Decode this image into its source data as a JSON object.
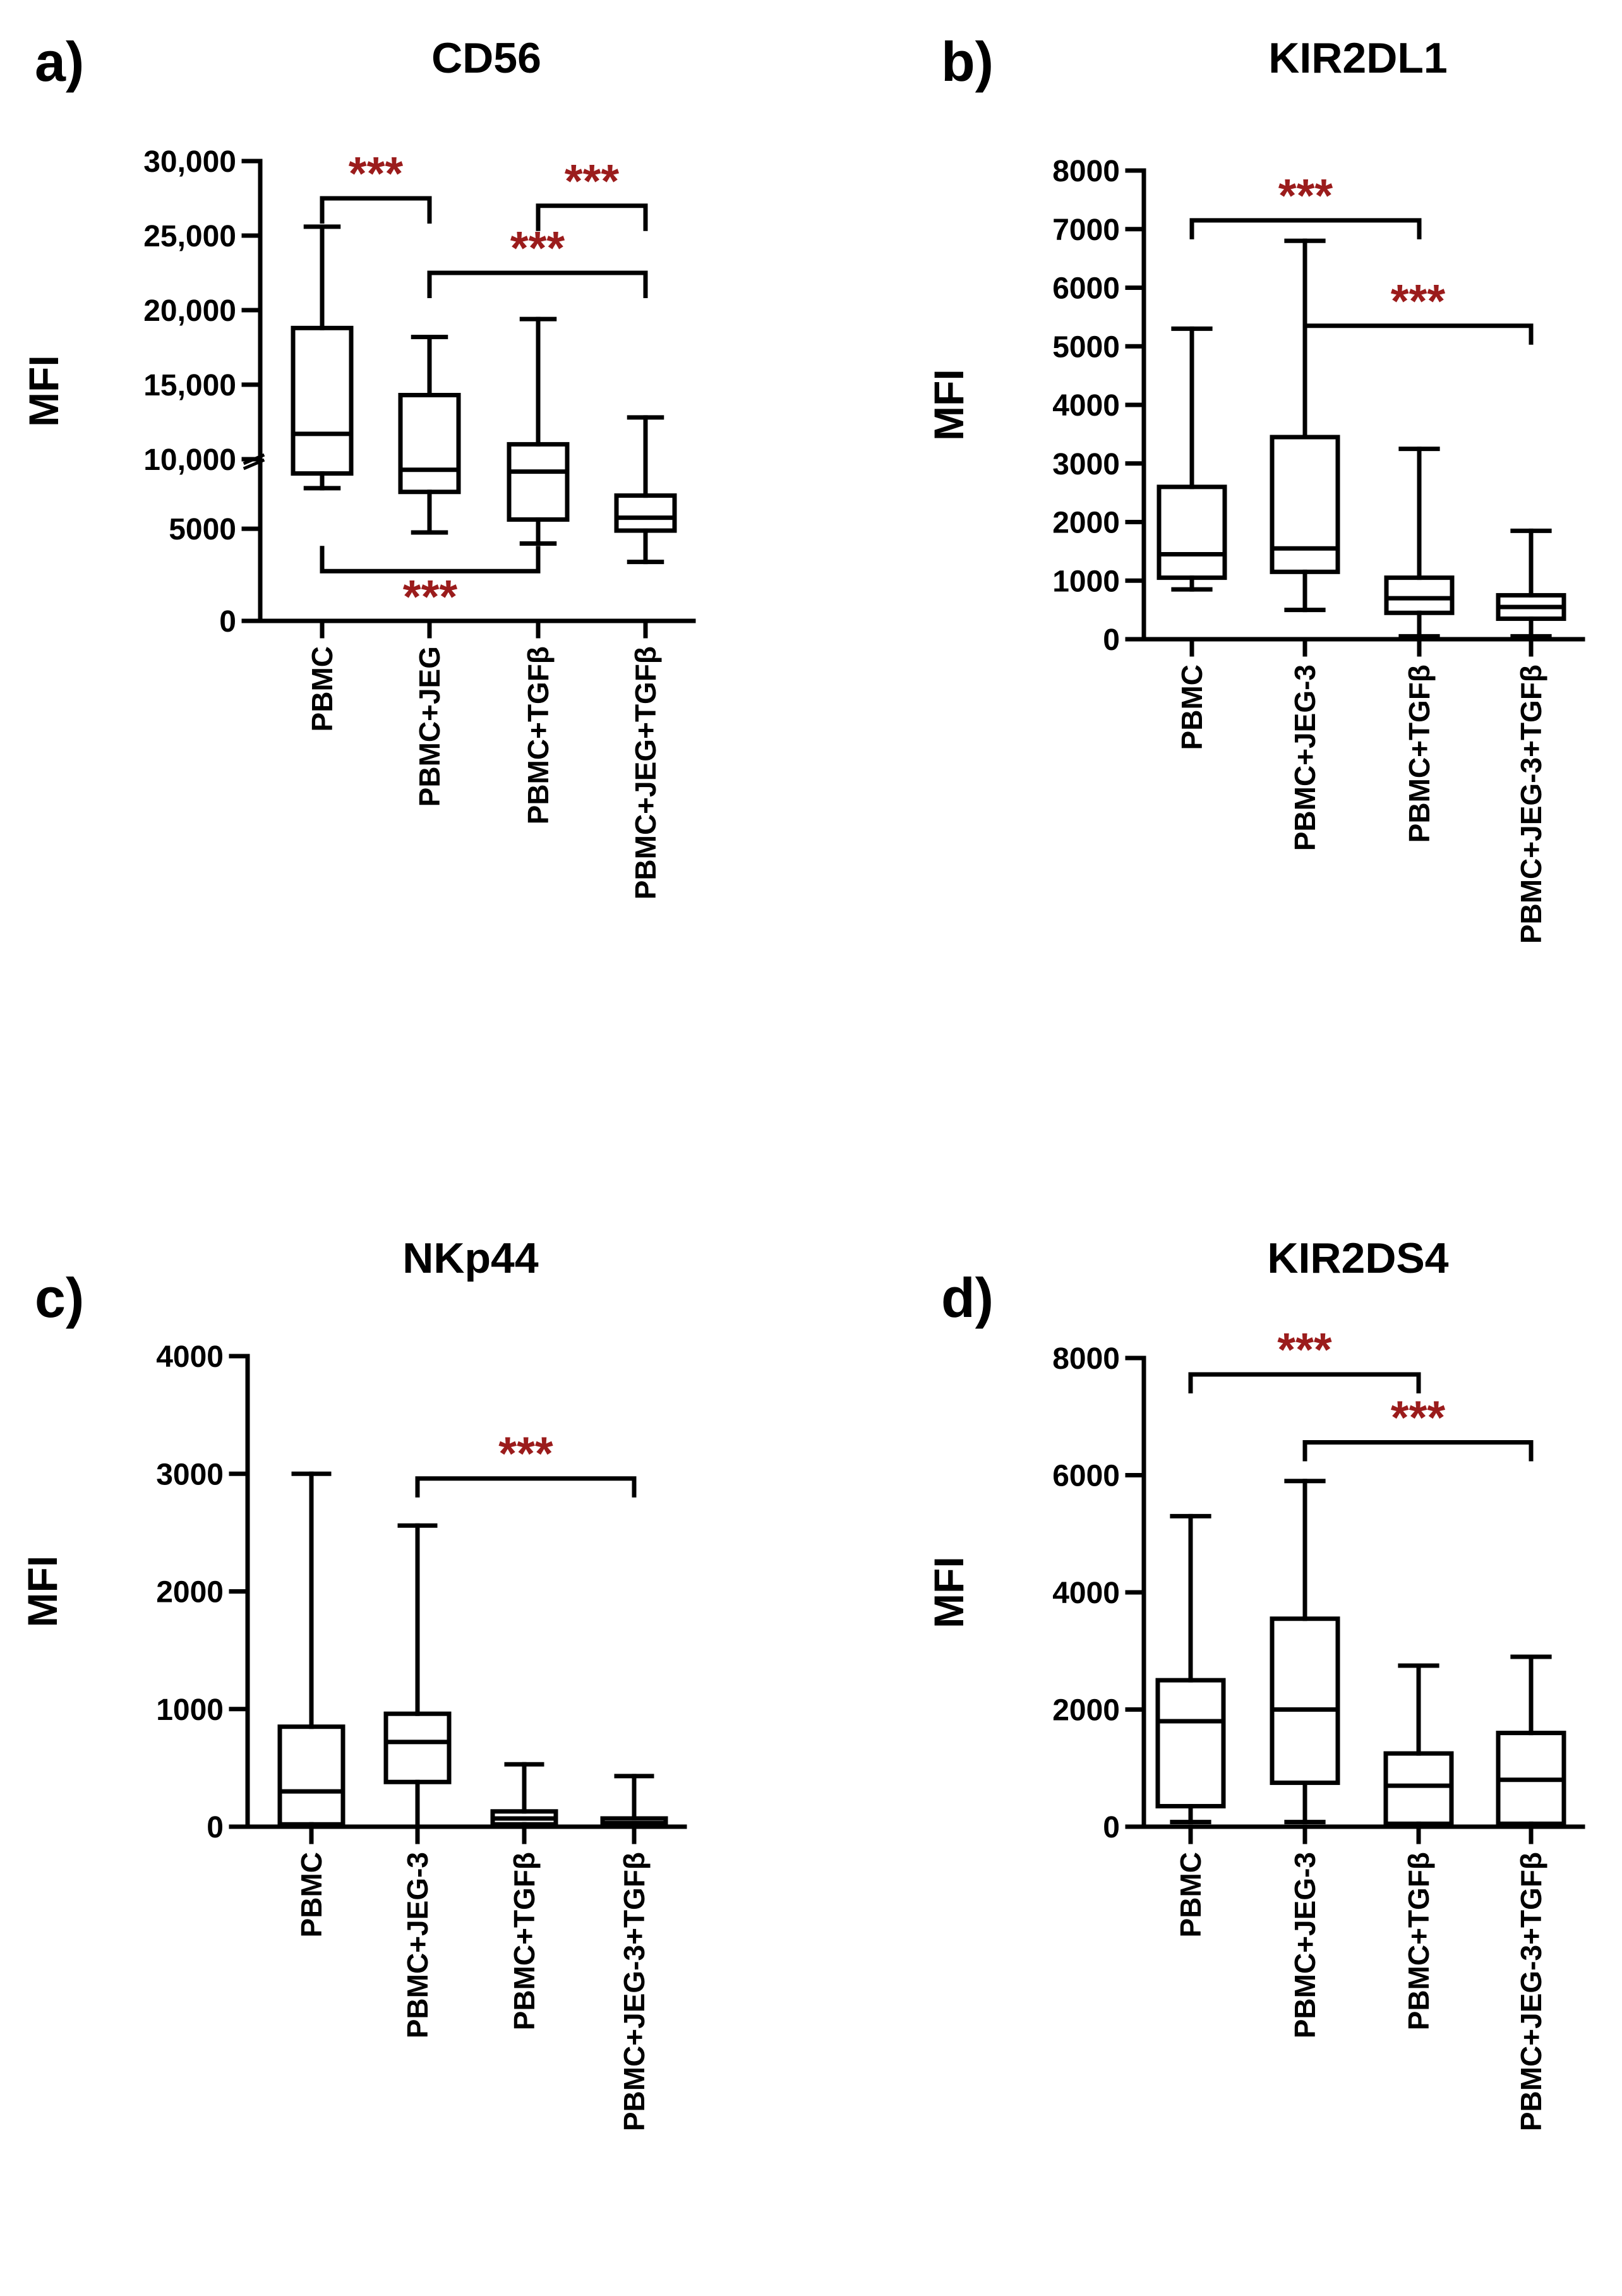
{
  "chart_data": [
    {
      "panel_label": "a)",
      "title": "CD56",
      "type": "box",
      "ylabel": "MFI",
      "axis_break": true,
      "ylim_lower": [
        0,
        8500
      ],
      "ylim_upper": [
        10000,
        30000
      ],
      "yticks": [
        {
          "value": 0,
          "label": "0"
        },
        {
          "value": 5000,
          "label": "5000"
        },
        {
          "value": 10000,
          "label": "10,000"
        },
        {
          "value": 15000,
          "label": "15,000"
        },
        {
          "value": 20000,
          "label": "20,000"
        },
        {
          "value": 25000,
          "label": "25,000"
        },
        {
          "value": 30000,
          "label": "30,000"
        }
      ],
      "categories": [
        "PBMC",
        "PBMC+JEG",
        "PBMC+TGFβ",
        "PBMC+JEG+TGFβ"
      ],
      "boxes": [
        {
          "min": 7200,
          "q1": 8000,
          "median": 11700,
          "q3": 18800,
          "max": 25600
        },
        {
          "min": 4800,
          "q1": 7000,
          "median": 8200,
          "q3": 14300,
          "max": 18200
        },
        {
          "min": 4200,
          "q1": 5500,
          "median": 8100,
          "q3": 11000,
          "max": 19400
        },
        {
          "min": 3200,
          "q1": 4900,
          "median": 5600,
          "q3": 6800,
          "max": 12800
        }
      ],
      "significance": [
        {
          "from": 0,
          "to": 1,
          "y": 27500,
          "direction": "down",
          "label": "***"
        },
        {
          "from": 2,
          "to": 3,
          "y": 27000,
          "direction": "down",
          "label": "***"
        },
        {
          "from": 1,
          "to": 3,
          "y": 22500,
          "direction": "down",
          "label": "***"
        },
        {
          "from": 0,
          "to": 2,
          "y": 2700,
          "direction": "up",
          "label": "***"
        }
      ]
    },
    {
      "panel_label": "b)",
      "title": "KIR2DL1",
      "type": "box",
      "ylabel": "MFI",
      "ylim": [
        0,
        8000
      ],
      "yticks": [
        {
          "value": 0,
          "label": "0"
        },
        {
          "value": 1000,
          "label": "1000"
        },
        {
          "value": 2000,
          "label": "2000"
        },
        {
          "value": 3000,
          "label": "3000"
        },
        {
          "value": 4000,
          "label": "4000"
        },
        {
          "value": 5000,
          "label": "5000"
        },
        {
          "value": 6000,
          "label": "6000"
        },
        {
          "value": 7000,
          "label": "7000"
        },
        {
          "value": 8000,
          "label": "8000"
        }
      ],
      "categories": [
        "PBMC",
        "PBMC+JEG-3",
        "PBMC+TGFβ",
        "PBMC+JEG-3+TGFβ"
      ],
      "boxes": [
        {
          "min": 850,
          "q1": 1050,
          "median": 1450,
          "q3": 2600,
          "max": 5300
        },
        {
          "min": 500,
          "q1": 1150,
          "median": 1550,
          "q3": 3450,
          "max": 6800
        },
        {
          "min": 50,
          "q1": 450,
          "median": 700,
          "q3": 1050,
          "max": 3250
        },
        {
          "min": 50,
          "q1": 350,
          "median": 550,
          "q3": 750,
          "max": 1850
        }
      ],
      "significance": [
        {
          "from": 0,
          "to": 2,
          "y": 7150,
          "direction": "down",
          "label": "***"
        },
        {
          "from": 1,
          "to": 3,
          "y": 5350,
          "direction": "down",
          "label": "***"
        }
      ]
    },
    {
      "panel_label": "c)",
      "title": "NKp44",
      "type": "box",
      "ylabel": "MFI",
      "ylim": [
        0,
        4000
      ],
      "yticks": [
        {
          "value": 0,
          "label": "0"
        },
        {
          "value": 1000,
          "label": "1000"
        },
        {
          "value": 2000,
          "label": "2000"
        },
        {
          "value": 3000,
          "label": "3000"
        },
        {
          "value": 4000,
          "label": "4000"
        }
      ],
      "categories": [
        "PBMC",
        "PBMC+JEG-3",
        "PBMC+TGFβ",
        "PBMC+JEG-3+TGFβ"
      ],
      "boxes": [
        {
          "min": 0,
          "q1": 20,
          "median": 300,
          "q3": 850,
          "max": 3000
        },
        {
          "min": 0,
          "q1": 380,
          "median": 720,
          "q3": 960,
          "max": 2560
        },
        {
          "min": 0,
          "q1": 20,
          "median": 70,
          "q3": 130,
          "max": 530
        },
        {
          "min": 0,
          "q1": 10,
          "median": 30,
          "q3": 70,
          "max": 430
        }
      ],
      "significance": [
        {
          "from": 1,
          "to": 3,
          "y": 2960,
          "direction": "down",
          "label": "***"
        }
      ]
    },
    {
      "panel_label": "d)",
      "title": "KIR2DS4",
      "type": "box",
      "ylabel": "MFI",
      "ylim": [
        0,
        8000
      ],
      "yticks": [
        {
          "value": 0,
          "label": "0"
        },
        {
          "value": 2000,
          "label": "2000"
        },
        {
          "value": 4000,
          "label": "4000"
        },
        {
          "value": 6000,
          "label": "6000"
        },
        {
          "value": 8000,
          "label": "8000"
        }
      ],
      "categories": [
        "PBMC",
        "PBMC+JEG-3",
        "PBMC+TGFβ",
        "PBMC+JEG-3+TGFβ"
      ],
      "boxes": [
        {
          "min": 80,
          "q1": 350,
          "median": 1800,
          "q3": 2500,
          "max": 5300
        },
        {
          "min": 80,
          "q1": 750,
          "median": 2000,
          "q3": 3550,
          "max": 5900
        },
        {
          "min": 0,
          "q1": 50,
          "median": 700,
          "q3": 1250,
          "max": 2750
        },
        {
          "min": 0,
          "q1": 50,
          "median": 800,
          "q3": 1600,
          "max": 2900
        }
      ],
      "significance": [
        {
          "from": 0,
          "to": 2,
          "y": 7720,
          "direction": "down",
          "label": "***"
        },
        {
          "from": 1,
          "to": 3,
          "y": 6560,
          "direction": "down",
          "label": "***"
        }
      ]
    }
  ],
  "colors": {
    "axis": "#000000",
    "box": "#000000",
    "significance": "#9b1c1c",
    "background": "#ffffff"
  }
}
